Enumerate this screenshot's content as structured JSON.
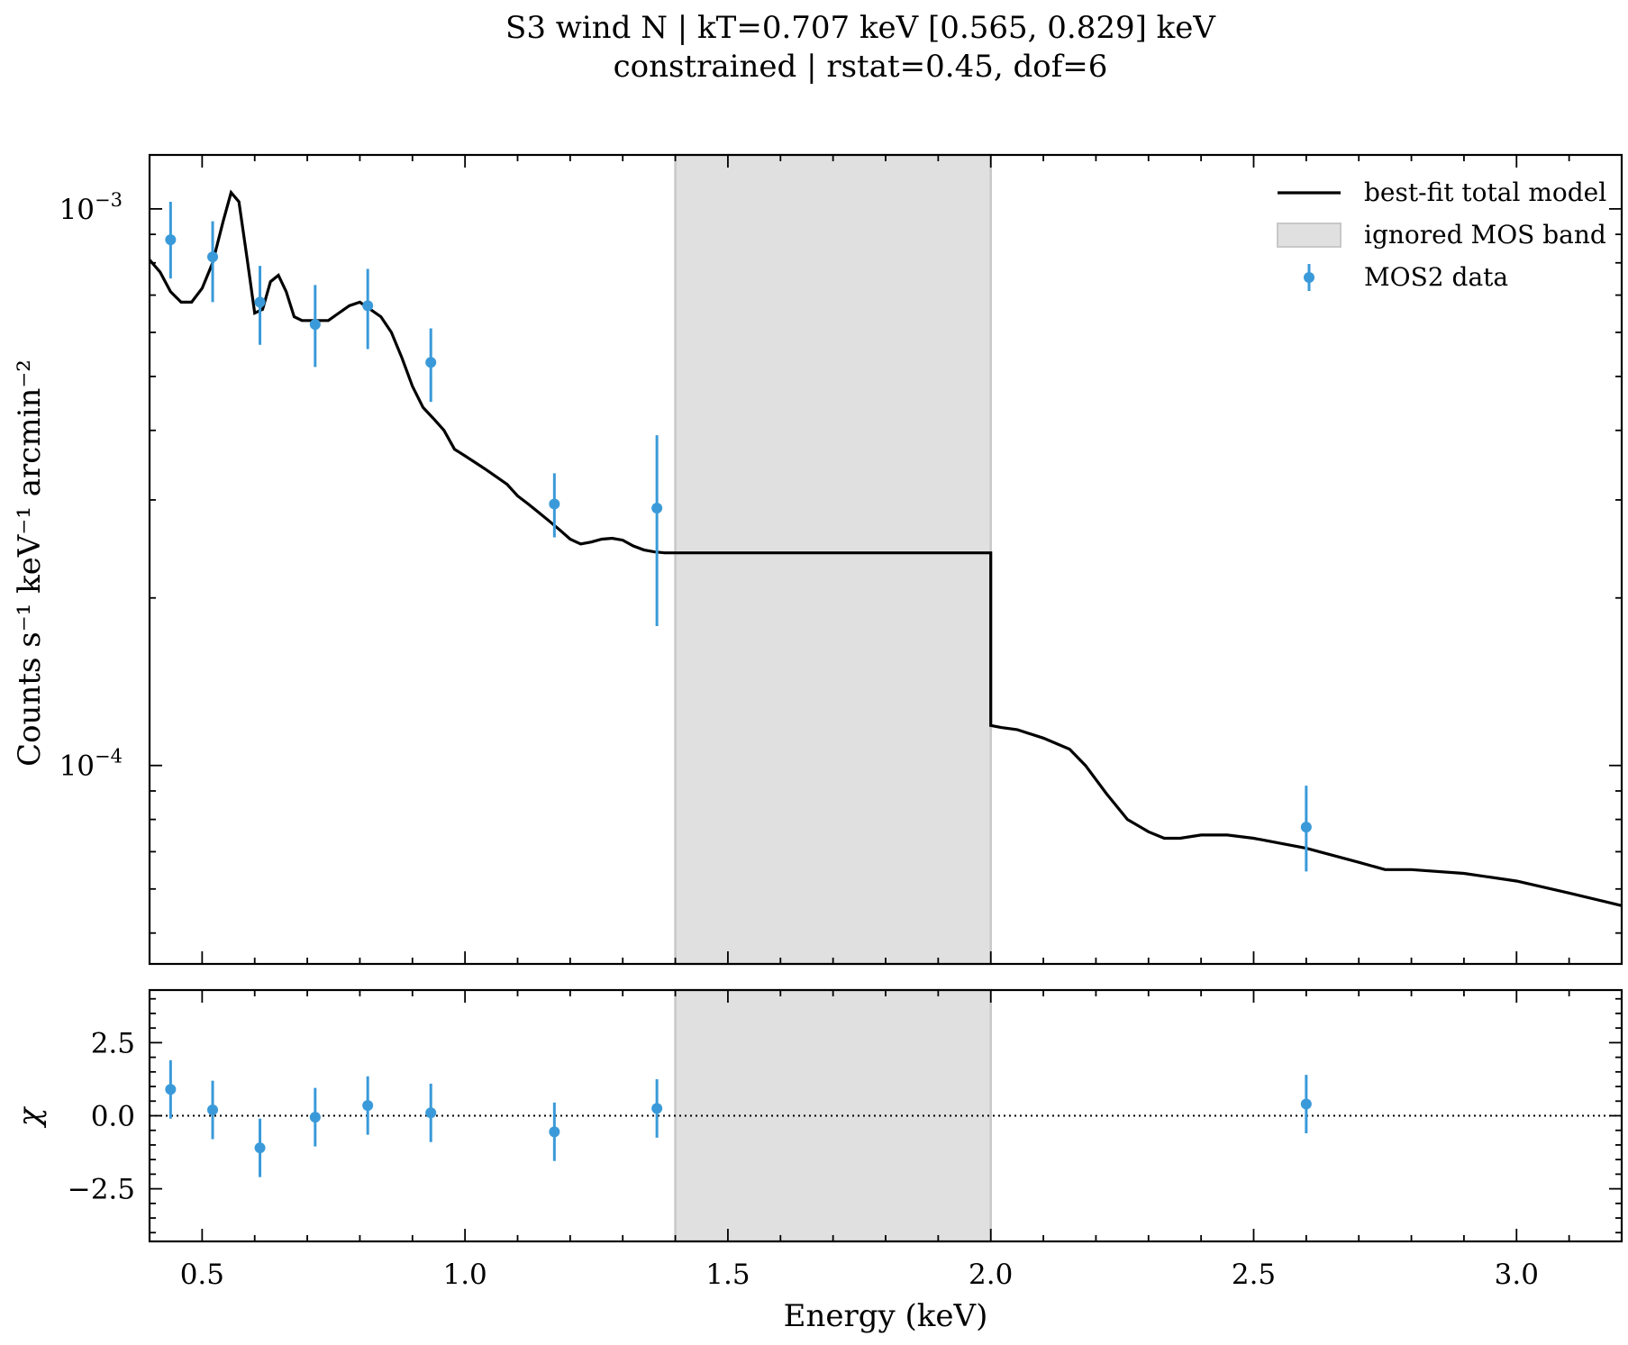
{
  "chart_data": [
    {
      "type": "line",
      "panel": "spectrum",
      "title": [
        "S3 wind N | kT=0.707 keV [0.565, 0.829] keV",
        "constrained | rstat=0.45, dof=6"
      ],
      "xlabel": "",
      "ylabel": "Counts s⁻¹ keV⁻¹ arcmin⁻²",
      "xlim": [
        0.4,
        3.2
      ],
      "ylim": [
        4.4e-05,
        0.00125
      ],
      "yscale": "log",
      "y_ticks": [
        {
          "value": 0.001,
          "base": "10",
          "exp": "−3"
        },
        {
          "value": 0.0001,
          "base": "10",
          "exp": "−4"
        }
      ],
      "legend_position": "top-right",
      "legend": [
        {
          "label": "best-fit total model",
          "kind": "line",
          "color": "#000000"
        },
        {
          "label": "ignored MOS band",
          "kind": "patch",
          "color": "#e0e0e0"
        },
        {
          "label": "MOS2 data",
          "kind": "errorbar",
          "color": "#3a9ad9"
        }
      ],
      "ignored_band": {
        "x0": 1.4,
        "x1": 2.0,
        "color": "#e0e0e0",
        "edge_color": "#c8c8c8"
      },
      "series": [
        {
          "name": "best-fit total model",
          "color": "#000000",
          "x": [
            0.4,
            0.42,
            0.44,
            0.46,
            0.48,
            0.5,
            0.52,
            0.54,
            0.555,
            0.57,
            0.585,
            0.6,
            0.615,
            0.63,
            0.645,
            0.66,
            0.675,
            0.69,
            0.705,
            0.72,
            0.74,
            0.76,
            0.78,
            0.8,
            0.82,
            0.84,
            0.86,
            0.88,
            0.9,
            0.92,
            0.94,
            0.96,
            0.98,
            1.0,
            1.02,
            1.04,
            1.06,
            1.08,
            1.1,
            1.12,
            1.14,
            1.16,
            1.18,
            1.2,
            1.22,
            1.24,
            1.26,
            1.28,
            1.3,
            1.32,
            1.34,
            1.36,
            1.38,
            1.4,
            2.0,
            2.0,
            2.02,
            2.05,
            2.1,
            2.15,
            2.18,
            2.22,
            2.26,
            2.3,
            2.33,
            2.36,
            2.4,
            2.45,
            2.5,
            2.6,
            2.7,
            2.75,
            2.8,
            2.9,
            3.0,
            3.1,
            3.2
          ],
          "y": [
            0.00081,
            0.00077,
            0.00071,
            0.00068,
            0.00068,
            0.00072,
            0.0008,
            0.00095,
            0.00107,
            0.00103,
            0.00082,
            0.00065,
            0.00066,
            0.00074,
            0.00076,
            0.00071,
            0.00064,
            0.00063,
            0.00063,
            0.00063,
            0.00063,
            0.00065,
            0.00067,
            0.00068,
            0.00066,
            0.00064,
            0.0006,
            0.00054,
            0.00048,
            0.00044,
            0.00042,
            0.0004,
            0.00037,
            0.00036,
            0.00035,
            0.00034,
            0.00033,
            0.00032,
            0.000305,
            0.000295,
            0.000285,
            0.000275,
            0.000265,
            0.000255,
            0.00025,
            0.000252,
            0.000255,
            0.000256,
            0.000254,
            0.000248,
            0.000244,
            0.000242,
            0.000241,
            0.000241,
            0.000241,
            0.000118,
            0.000117,
            0.000116,
            0.000112,
            0.000107,
            0.0001,
            8.9e-05,
            8e-05,
            7.6e-05,
            7.4e-05,
            7.4e-05,
            7.5e-05,
            7.5e-05,
            7.4e-05,
            7.1e-05,
            6.7e-05,
            6.5e-05,
            6.5e-05,
            6.4e-05,
            6.2e-05,
            5.9e-05,
            5.6e-05
          ]
        },
        {
          "name": "MOS2 data",
          "color": "#3a9ad9",
          "x": [
            0.44,
            0.52,
            0.61,
            0.715,
            0.815,
            0.935,
            1.17,
            1.365,
            2.6
          ],
          "y": [
            0.00088,
            0.00082,
            0.00068,
            0.00062,
            0.00067,
            0.00053,
            0.000295,
            0.00029,
            7.75e-05
          ],
          "yerr_low": [
            0.00075,
            0.00068,
            0.00057,
            0.00052,
            0.00056,
            0.00045,
            0.000257,
            0.000178,
            6.45e-05
          ],
          "yerr_high": [
            0.00103,
            0.00095,
            0.00079,
            0.00073,
            0.00078,
            0.00061,
            0.000335,
            0.000392,
            9.2e-05
          ]
        }
      ]
    },
    {
      "type": "scatter",
      "panel": "residuals",
      "xlabel": "Energy (keV)",
      "ylabel": "χ",
      "xlim": [
        0.4,
        3.2
      ],
      "ylim": [
        -4.3,
        4.3
      ],
      "x_ticks": [
        "0.5",
        "1.0",
        "1.5",
        "2.0",
        "2.5",
        "3.0"
      ],
      "x_tick_values": [
        0.5,
        1.0,
        1.5,
        2.0,
        2.5,
        3.0
      ],
      "y_ticks": [
        "2.5",
        "0.0",
        "−2.5"
      ],
      "y_tick_values": [
        2.5,
        0.0,
        -2.5
      ],
      "zero_line": "dotted",
      "ignored_band": {
        "x0": 1.4,
        "x1": 2.0
      },
      "series": [
        {
          "name": "MOS2 data",
          "color": "#3a9ad9",
          "x": [
            0.44,
            0.52,
            0.61,
            0.715,
            0.815,
            0.935,
            1.17,
            1.365,
            2.6
          ],
          "y": [
            0.9,
            0.2,
            -1.1,
            -0.05,
            0.35,
            0.1,
            -0.55,
            0.25,
            0.4
          ],
          "yerr": [
            1.0,
            1.0,
            1.0,
            1.0,
            1.0,
            1.0,
            1.0,
            1.0,
            1.0
          ]
        }
      ]
    }
  ]
}
